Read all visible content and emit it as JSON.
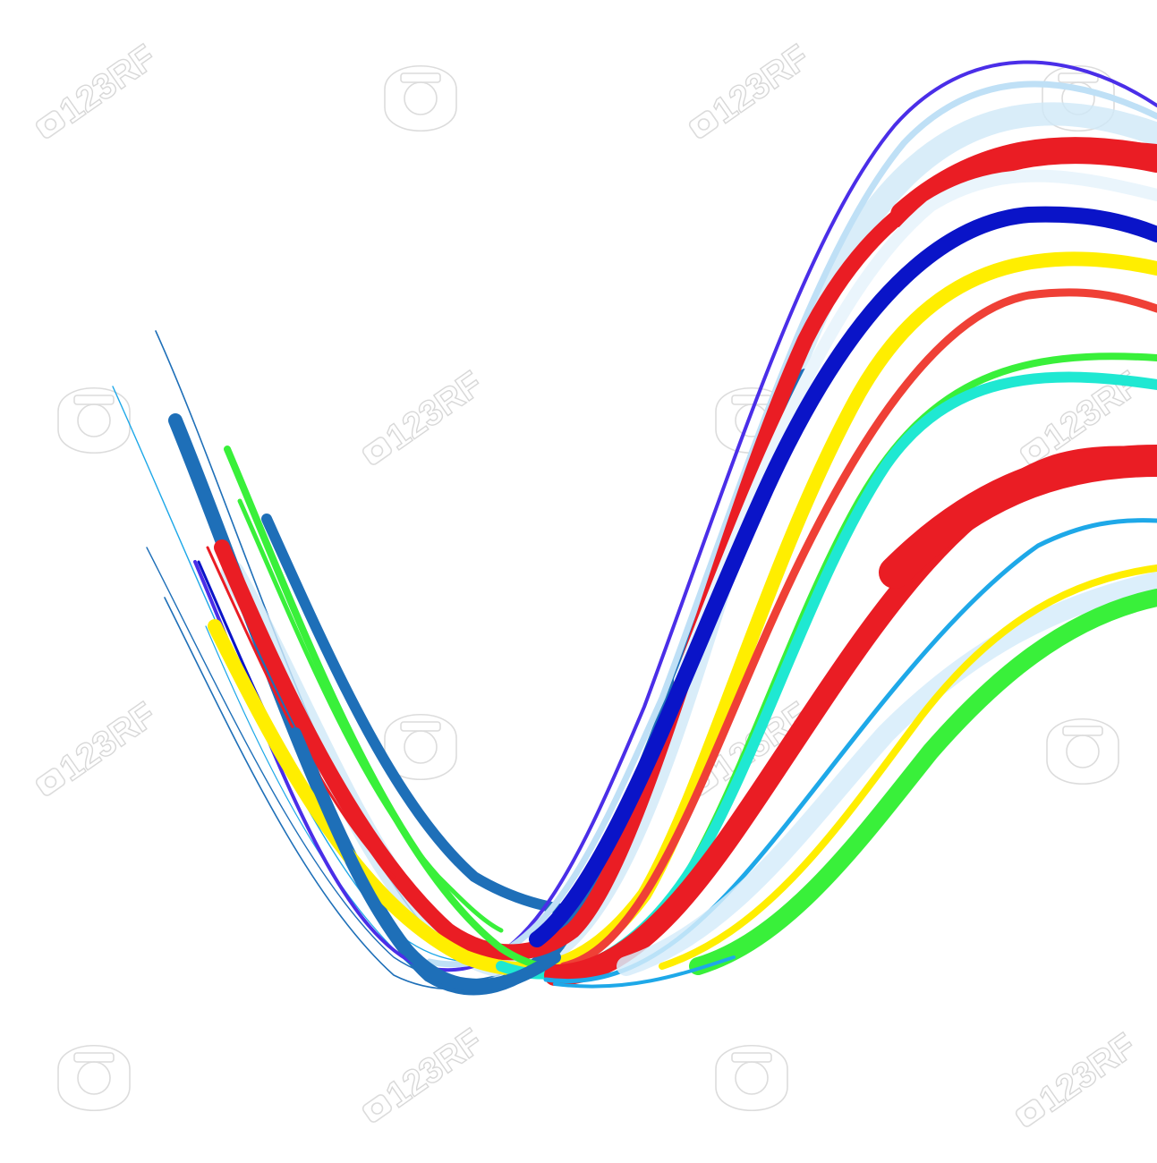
{
  "image": {
    "background": "#ffffff"
  },
  "watermark": {
    "text": "123RF",
    "color": "#d8d8d8"
  },
  "ribbon_colors": {
    "violet": "#4a2ee8",
    "red": "#ea1d24",
    "blue": "#0a14c8",
    "yellow": "#ffee00",
    "orange_red": "#ef4036",
    "green": "#39f03a",
    "cyan": "#1fe8d2",
    "sky": "#1ea8e8",
    "steel": "#1e6fb8",
    "pale_blue": "#cfe8f8"
  },
  "icons": [
    "camera-watermark-icon",
    "seal-watermark-icon"
  ]
}
